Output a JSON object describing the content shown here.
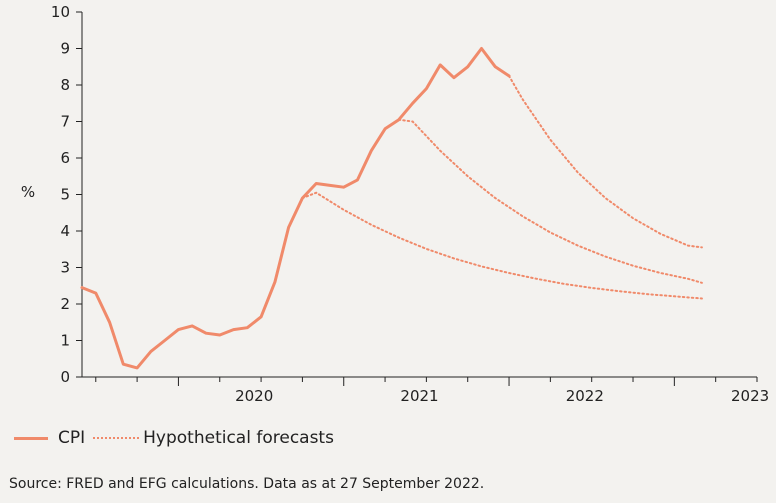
{
  "chart_data": {
    "type": "line",
    "ylabel": "%",
    "ylim": [
      0,
      10
    ],
    "yticks": [
      0,
      1,
      2,
      3,
      4,
      5,
      6,
      7,
      8,
      9,
      10
    ],
    "xlim": [
      "2019-06",
      "2023-07"
    ],
    "year_labels": [
      "2020",
      "2021",
      "2022",
      "2023"
    ],
    "grid": false,
    "legend_position": "bottom-left",
    "color": "#f08a6a",
    "series": [
      {
        "name": "CPI",
        "style": "solid",
        "points": [
          [
            "2019-06",
            2.45
          ],
          [
            "2019-07",
            2.3
          ],
          [
            "2019-08",
            1.5
          ],
          [
            "2019-09",
            0.35
          ],
          [
            "2019-10",
            0.25
          ],
          [
            "2019-11",
            0.7
          ],
          [
            "2019-12",
            1.0
          ],
          [
            "2020-01",
            1.3
          ],
          [
            "2020-02",
            1.4
          ],
          [
            "2020-03",
            1.2
          ],
          [
            "2020-04",
            1.15
          ],
          [
            "2020-05",
            1.3
          ],
          [
            "2020-06",
            1.35
          ],
          [
            "2020-07",
            1.65
          ],
          [
            "2020-08",
            2.6
          ],
          [
            "2020-09",
            4.1
          ],
          [
            "2020-10",
            4.9
          ],
          [
            "2020-11",
            5.3
          ],
          [
            "2020-12",
            5.25
          ],
          [
            "2021-01",
            5.2
          ],
          [
            "2021-02",
            5.4
          ],
          [
            "2021-03",
            6.2
          ],
          [
            "2021-04",
            6.8
          ],
          [
            "2021-05",
            7.05
          ],
          [
            "2021-06",
            7.5
          ],
          [
            "2021-07",
            7.9
          ],
          [
            "2021-08",
            8.55
          ],
          [
            "2021-09",
            8.2
          ],
          [
            "2021-10",
            8.5
          ],
          [
            "2021-11",
            9.0
          ],
          [
            "2021-12",
            8.5
          ],
          [
            "2022-01",
            8.25
          ]
        ]
      },
      {
        "name": "Hypothetical forecasts",
        "style": "dotted",
        "paths": [
          [
            [
              "2020-10",
              4.9
            ],
            [
              "2020-11",
              5.05
            ],
            [
              "2021-01",
              4.58
            ],
            [
              "2021-03",
              4.17
            ],
            [
              "2021-05",
              3.82
            ],
            [
              "2021-07",
              3.51
            ],
            [
              "2021-09",
              3.25
            ],
            [
              "2021-11",
              3.03
            ],
            [
              "2022-01",
              2.85
            ],
            [
              "2022-03",
              2.69
            ],
            [
              "2022-05",
              2.55
            ],
            [
              "2022-07",
              2.44
            ],
            [
              "2022-09",
              2.35
            ],
            [
              "2022-11",
              2.27
            ],
            [
              "2023-01",
              2.21
            ],
            [
              "2023-03",
              2.15
            ]
          ],
          [
            [
              "2021-05",
              7.05
            ],
            [
              "2021-06",
              7.0
            ],
            [
              "2021-08",
              6.2
            ],
            [
              "2021-10",
              5.5
            ],
            [
              "2021-12",
              4.9
            ],
            [
              "2022-02",
              4.4
            ],
            [
              "2022-04",
              3.96
            ],
            [
              "2022-06",
              3.6
            ],
            [
              "2022-08",
              3.3
            ],
            [
              "2022-10",
              3.05
            ],
            [
              "2022-12",
              2.85
            ],
            [
              "2023-02",
              2.69
            ],
            [
              "2023-03",
              2.58
            ]
          ],
          [
            [
              "2022-01",
              8.25
            ],
            [
              "2022-02",
              7.6
            ],
            [
              "2022-04",
              6.5
            ],
            [
              "2022-06",
              5.6
            ],
            [
              "2022-08",
              4.9
            ],
            [
              "2022-10",
              4.35
            ],
            [
              "2022-12",
              3.92
            ],
            [
              "2023-02",
              3.6
            ],
            [
              "2023-03",
              3.55
            ]
          ]
        ]
      }
    ]
  },
  "legend": {
    "cpi_label": "CPI",
    "forecast_label": "Hypothetical forecasts"
  },
  "source": "Source: FRED and EFG calculations. Data as at 27 September 2022."
}
